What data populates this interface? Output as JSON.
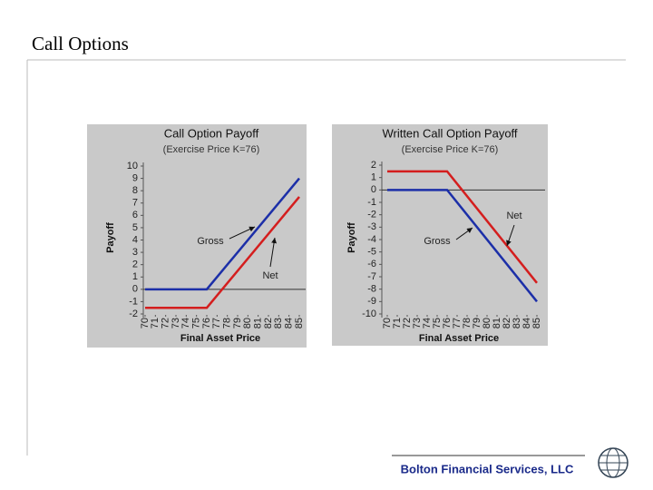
{
  "slide_title": "Call Options",
  "footer": "Bolton Financial Services, LLC",
  "chart_data": [
    {
      "type": "line",
      "title": "Call Option Payoff",
      "subtitle": "(Exercise Price K=76)",
      "x_label": "Final Asset Price",
      "y_label": "Payoff",
      "x": [
        70,
        76,
        85
      ],
      "series": [
        {
          "name": "Gross",
          "color": "#1c2fa8",
          "values": [
            0,
            0,
            9
          ]
        },
        {
          "name": "Net",
          "color": "#d41e1e",
          "values": [
            -1.5,
            -1.5,
            7.5
          ]
        }
      ],
      "xlim": [
        70,
        85
      ],
      "xticks": [
        70,
        71,
        72,
        73,
        74,
        75,
        76,
        77,
        78,
        79,
        80,
        81,
        82,
        83,
        84,
        85
      ],
      "ylim": [
        -2,
        10
      ],
      "yticks": [
        10,
        9,
        8,
        7,
        6,
        5,
        4,
        3,
        2,
        1,
        0,
        -1,
        -2
      ]
    },
    {
      "type": "line",
      "title": "Written Call Option Payoff",
      "subtitle": "(Exercise Price K=76)",
      "x_label": "Final Asset Price",
      "y_label": "Payoff",
      "x": [
        70,
        76,
        85
      ],
      "series": [
        {
          "name": "Gross",
          "color": "#1c2fa8",
          "values": [
            0,
            0,
            -9
          ]
        },
        {
          "name": "Net",
          "color": "#d41e1e",
          "values": [
            1.5,
            1.5,
            -7.5
          ]
        }
      ],
      "xlim": [
        70,
        85
      ],
      "xticks": [
        70,
        71,
        72,
        73,
        74,
        75,
        76,
        77,
        78,
        79,
        80,
        81,
        82,
        83,
        84,
        85
      ],
      "ylim": [
        -10,
        2
      ],
      "yticks": [
        2,
        1,
        0,
        -1,
        -2,
        -3,
        -4,
        -5,
        -6,
        -7,
        -8,
        -9,
        -10
      ]
    }
  ]
}
